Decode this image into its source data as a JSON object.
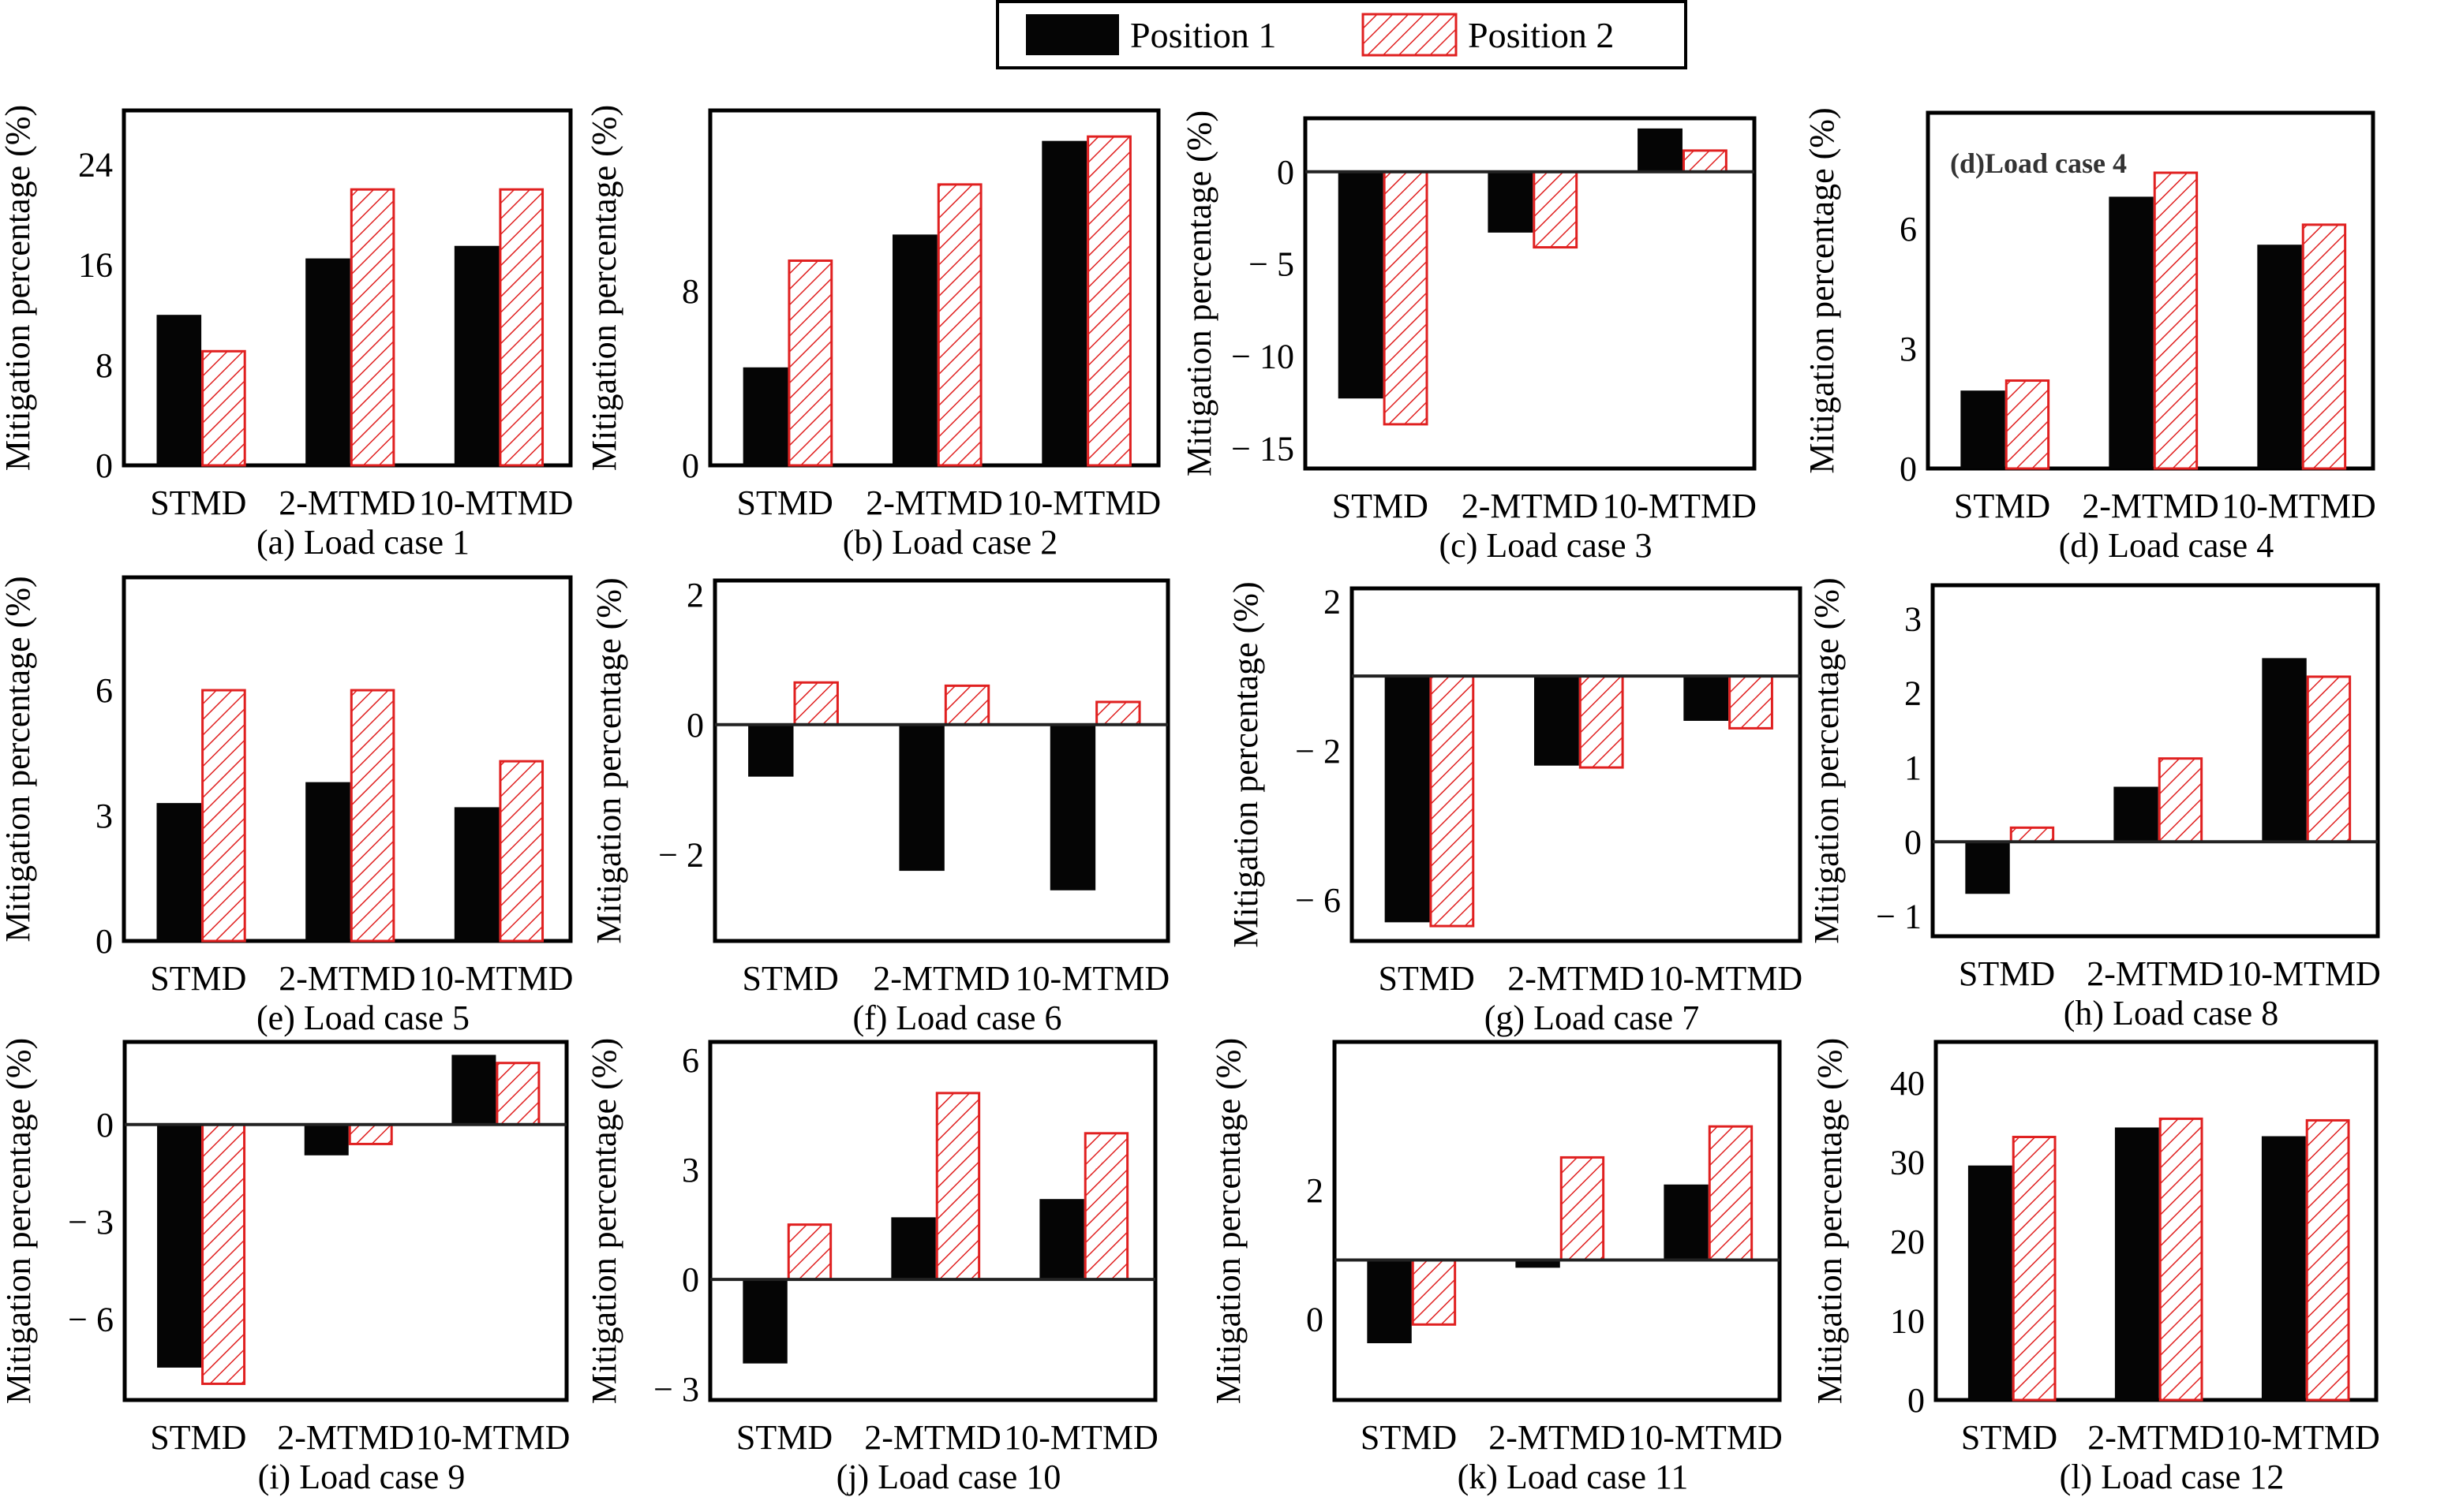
{
  "legend": {
    "items": [
      {
        "label": "Position 1",
        "style": "solid",
        "color": "#000000"
      },
      {
        "label": "Position 2",
        "style": "hatched",
        "color": "#e02020"
      }
    ]
  },
  "colors": {
    "position1": "#050505",
    "position2_stroke": "#e02020",
    "frame": "#000000"
  },
  "chart_data": [
    {
      "id": "a",
      "type": "bar",
      "title": "(a) Load case 1",
      "ylabel": "Mitigation percentage (%)",
      "xlabel": "",
      "categories": [
        "STMD",
        "2-MTMD",
        "10-MTMD"
      ],
      "series": [
        {
          "name": "Position 1",
          "values": [
            12.0,
            16.5,
            17.5
          ]
        },
        {
          "name": "Position 2",
          "values": [
            9.1,
            22.0,
            22.0
          ]
        }
      ],
      "yticks": [
        0,
        8,
        16,
        24
      ],
      "ytick_labels": [
        "0",
        "8",
        "16",
        "24"
      ],
      "ylim": [
        0,
        28.3
      ],
      "baseline": 0,
      "inset_label": ""
    },
    {
      "id": "b",
      "type": "bar",
      "title": "(b) Load case 2",
      "ylabel": "Mitigation percentage (%)",
      "xlabel": "",
      "categories": [
        "STMD",
        "2-MTMD",
        "10-MTMD"
      ],
      "series": [
        {
          "name": "Position 1",
          "values": [
            4.5,
            10.6,
            14.9
          ]
        },
        {
          "name": "Position 2",
          "values": [
            9.4,
            12.9,
            15.1
          ]
        }
      ],
      "yticks": [
        0,
        8
      ],
      "ytick_labels": [
        "0",
        "8"
      ],
      "ylim": [
        0,
        16.3
      ],
      "baseline": 0,
      "inset_label": ""
    },
    {
      "id": "c",
      "type": "bar",
      "title": "(c) Load case 3",
      "ylabel": "Mitigation percentage (%)",
      "xlabel": "",
      "categories": [
        "STMD",
        "2-MTMD",
        "10-MTMD"
      ],
      "series": [
        {
          "name": "Position 1",
          "values": [
            -12.3,
            -3.3,
            2.35
          ]
        },
        {
          "name": "Position 2",
          "values": [
            -13.7,
            -4.1,
            1.15
          ]
        }
      ],
      "yticks": [
        0,
        -5,
        -10,
        -15
      ],
      "ytick_labels": [
        "0",
        "− 5",
        "− 10",
        "− 15"
      ],
      "ylim": [
        -16.1,
        2.9
      ],
      "baseline": 0,
      "inset_label": ""
    },
    {
      "id": "d",
      "type": "bar",
      "title": "(d) Load case 4",
      "ylabel": "Mitigation percentage (%)",
      "xlabel": "",
      "categories": [
        "STMD",
        "2-MTMD",
        "10-MTMD"
      ],
      "series": [
        {
          "name": "Position 1",
          "values": [
            1.95,
            6.8,
            5.6
          ]
        },
        {
          "name": "Position 2",
          "values": [
            2.2,
            7.4,
            6.1
          ]
        }
      ],
      "yticks": [
        0,
        3,
        6
      ],
      "ytick_labels": [
        "0",
        "3",
        "6"
      ],
      "ylim": [
        0,
        8.9
      ],
      "baseline": 0,
      "inset_label": "(d)Load case 4"
    },
    {
      "id": "e",
      "type": "bar",
      "title": "(e) Load case 5",
      "ylabel": "Mitigation percentage (%)",
      "xlabel": "",
      "categories": [
        "STMD",
        "2-MTMD",
        "10-MTMD"
      ],
      "series": [
        {
          "name": "Position 1",
          "values": [
            3.3,
            3.8,
            3.2
          ]
        },
        {
          "name": "Position 2",
          "values": [
            6.0,
            6.0,
            4.3
          ]
        }
      ],
      "yticks": [
        0,
        3,
        6
      ],
      "ytick_labels": [
        "0",
        "3",
        "6"
      ],
      "ylim": [
        0,
        8.7
      ],
      "baseline": 0,
      "inset_label": ""
    },
    {
      "id": "f",
      "type": "bar",
      "title": "(f) Load case 6",
      "ylabel": "Mitigation percentage (%)",
      "xlabel": "",
      "categories": [
        "STMD",
        "2-MTMD",
        "10-MTMD"
      ],
      "series": [
        {
          "name": "Position 1",
          "values": [
            -0.8,
            -2.25,
            -2.55
          ]
        },
        {
          "name": "Position 2",
          "values": [
            0.65,
            0.6,
            0.35
          ]
        }
      ],
      "yticks": [
        2,
        0,
        -2
      ],
      "ytick_labels": [
        "2",
        "0",
        "− 2"
      ],
      "ylim": [
        -3.33,
        2.22
      ],
      "baseline": 0,
      "inset_label": ""
    },
    {
      "id": "g",
      "type": "bar",
      "title": "(g) Load case 7",
      "ylabel": "Mitigation percentage (%)",
      "xlabel": "",
      "categories": [
        "STMD",
        "2-MTMD",
        "10-MTMD"
      ],
      "series": [
        {
          "name": "Position 1",
          "values": [
            -6.6,
            -2.4,
            -1.2
          ]
        },
        {
          "name": "Position 2",
          "values": [
            -6.7,
            -2.45,
            -1.4
          ]
        }
      ],
      "yticks": [
        2,
        -2,
        -6
      ],
      "ytick_labels": [
        "2",
        "− 2",
        "− 6"
      ],
      "ylim": [
        -7.1,
        2.35
      ],
      "baseline": 0,
      "inset_label": ""
    },
    {
      "id": "h",
      "type": "bar",
      "title": "(h) Load case 8",
      "ylabel": "Mitigation percentage (%)",
      "xlabel": "",
      "categories": [
        "STMD",
        "2-MTMD",
        "10-MTMD"
      ],
      "series": [
        {
          "name": "Position 1",
          "values": [
            -0.7,
            0.74,
            2.47
          ]
        },
        {
          "name": "Position 2",
          "values": [
            0.19,
            1.12,
            2.22
          ]
        }
      ],
      "yticks": [
        3,
        2,
        1,
        0,
        -1
      ],
      "ytick_labels": [
        "3",
        "2",
        "1",
        "0",
        "− 1"
      ],
      "ylim": [
        -1.27,
        3.45
      ],
      "baseline": 0,
      "inset_label": ""
    },
    {
      "id": "i",
      "type": "bar",
      "title": "(i) Load case 9",
      "ylabel": "Mitigation percentage (%)",
      "xlabel": "",
      "categories": [
        "STMD",
        "2-MTMD",
        "10-MTMD"
      ],
      "series": [
        {
          "name": "Position 1",
          "values": [
            -7.5,
            -0.95,
            2.15
          ]
        },
        {
          "name": "Position 2",
          "values": [
            -8.0,
            -0.6,
            1.9
          ]
        }
      ],
      "yticks": [
        0,
        -3,
        -6
      ],
      "ytick_labels": [
        "0",
        "− 3",
        "− 6"
      ],
      "ylim": [
        -8.5,
        2.55
      ],
      "baseline": 0,
      "inset_label": ""
    },
    {
      "id": "j",
      "type": "bar",
      "title": "(j) Load case 10",
      "ylabel": "Mitigation percentage (%)",
      "xlabel": "",
      "categories": [
        "STMD",
        "2-MTMD",
        "10-MTMD"
      ],
      "series": [
        {
          "name": "Position 1",
          "values": [
            -2.3,
            1.7,
            2.2
          ]
        },
        {
          "name": "Position 2",
          "values": [
            1.5,
            5.1,
            4.0
          ]
        }
      ],
      "yticks": [
        6,
        3,
        0,
        -3
      ],
      "ytick_labels": [
        "6",
        "3",
        "0",
        "− 3"
      ],
      "ylim": [
        -3.3,
        6.5
      ],
      "baseline": 0,
      "inset_label": ""
    },
    {
      "id": "k",
      "type": "bar",
      "title": "(k) Load case 11",
      "ylabel": "Mitigation percentage (%)",
      "xlabel": "",
      "categories": [
        "STMD",
        "2-MTMD",
        "10-MTMD"
      ],
      "series": [
        {
          "name": "Position 1",
          "values": [
            -0.37,
            0.8,
            2.09
          ]
        },
        {
          "name": "Position 2",
          "values": [
            -0.08,
            2.51,
            2.99
          ]
        }
      ],
      "yticks": [
        2,
        0
      ],
      "ytick_labels": [
        "2",
        "0"
      ],
      "ylim": [
        -1.25,
        4.3
      ],
      "baseline": 0.92,
      "inset_label": ""
    },
    {
      "id": "l",
      "type": "bar",
      "title": "(l) Load case 12",
      "ylabel": "Mitigation percentage (%)",
      "xlabel": "",
      "categories": [
        "STMD",
        "2-MTMD",
        "10-MTMD"
      ],
      "series": [
        {
          "name": "Position 1",
          "values": [
            29.6,
            34.4,
            33.3
          ]
        },
        {
          "name": "Position 2",
          "values": [
            33.2,
            35.5,
            35.3
          ]
        }
      ],
      "yticks": [
        0,
        10,
        20,
        30,
        40
      ],
      "ytick_labels": [
        "0",
        "10",
        "20",
        "30",
        "40"
      ],
      "ylim": [
        0,
        45.2
      ],
      "baseline": 0,
      "inset_label": ""
    }
  ]
}
